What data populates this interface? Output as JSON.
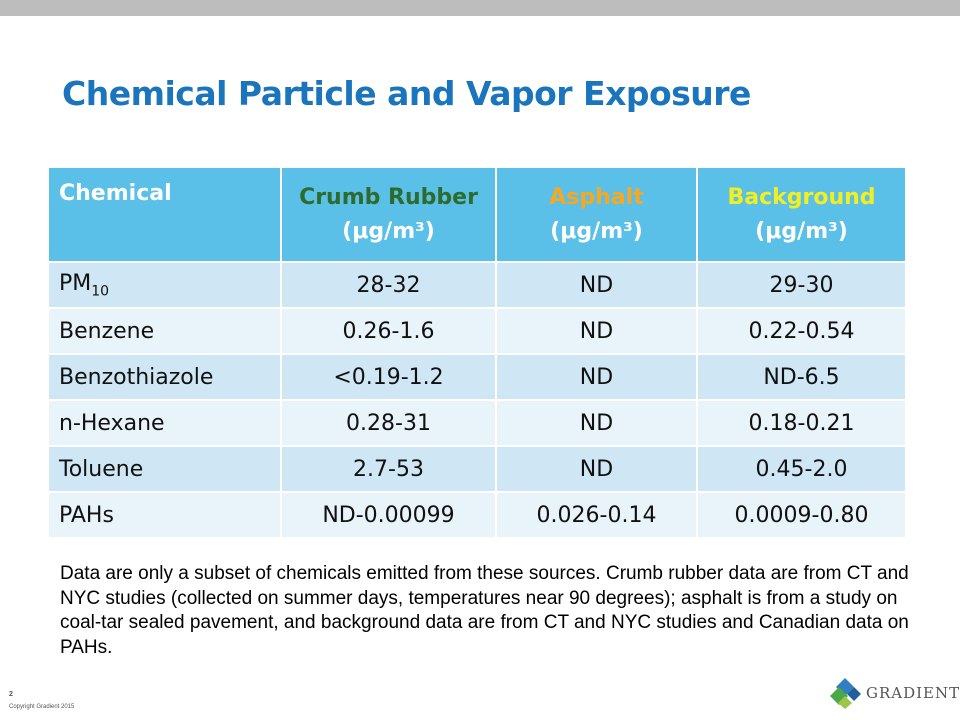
{
  "slide": {
    "title": "Chemical Particle and Vapor Exposure",
    "page_number": "2",
    "copyright": "Copyright Gradient 2015",
    "logo_text": "GRADIENT"
  },
  "table": {
    "headers": {
      "chemical": "Chemical",
      "crumb_rubber": "Crumb Rubber",
      "asphalt": "Asphalt",
      "background": "Background",
      "unit": "(μg/m³)"
    },
    "rows": [
      {
        "chemical": "PM",
        "chemical_sub": "10",
        "crumb_rubber": "28-32",
        "asphalt": "ND",
        "background": "29-30"
      },
      {
        "chemical": "Benzene",
        "crumb_rubber": "0.26-1.6",
        "asphalt": "ND",
        "background": "0.22-0.54"
      },
      {
        "chemical": "Benzothiazole",
        "crumb_rubber": "<0.19-1.2",
        "asphalt": "ND",
        "background": "ND-6.5"
      },
      {
        "chemical": "n-Hexane",
        "crumb_rubber": "0.28-31",
        "asphalt": "ND",
        "background": "0.18-0.21"
      },
      {
        "chemical": "Toluene",
        "crumb_rubber": "2.7-53",
        "asphalt": "ND",
        "background": "0.45-2.0"
      },
      {
        "chemical": "PAHs",
        "crumb_rubber": "ND-0.00099",
        "asphalt": "0.026-0.14",
        "background": "0.0009-0.80"
      }
    ]
  },
  "note": "Data are only a subset of chemicals emitted from these sources.  Crumb rubber data are from CT and NYC studies (collected on summer days, temperatures near 90 degrees); asphalt is from a study on coal-tar sealed pavement, and background data are from CT and NYC studies and Canadian data on PAHs.",
  "colors": {
    "title": "#1b75bc",
    "header_bg": "#5bc0e8",
    "crumb_rubber_header": "#2e6b2e",
    "asphalt_header": "#f7a823",
    "background_header": "#f2ee21",
    "row_odd": "#cfe7f5",
    "row_even": "#e9f3fa"
  }
}
